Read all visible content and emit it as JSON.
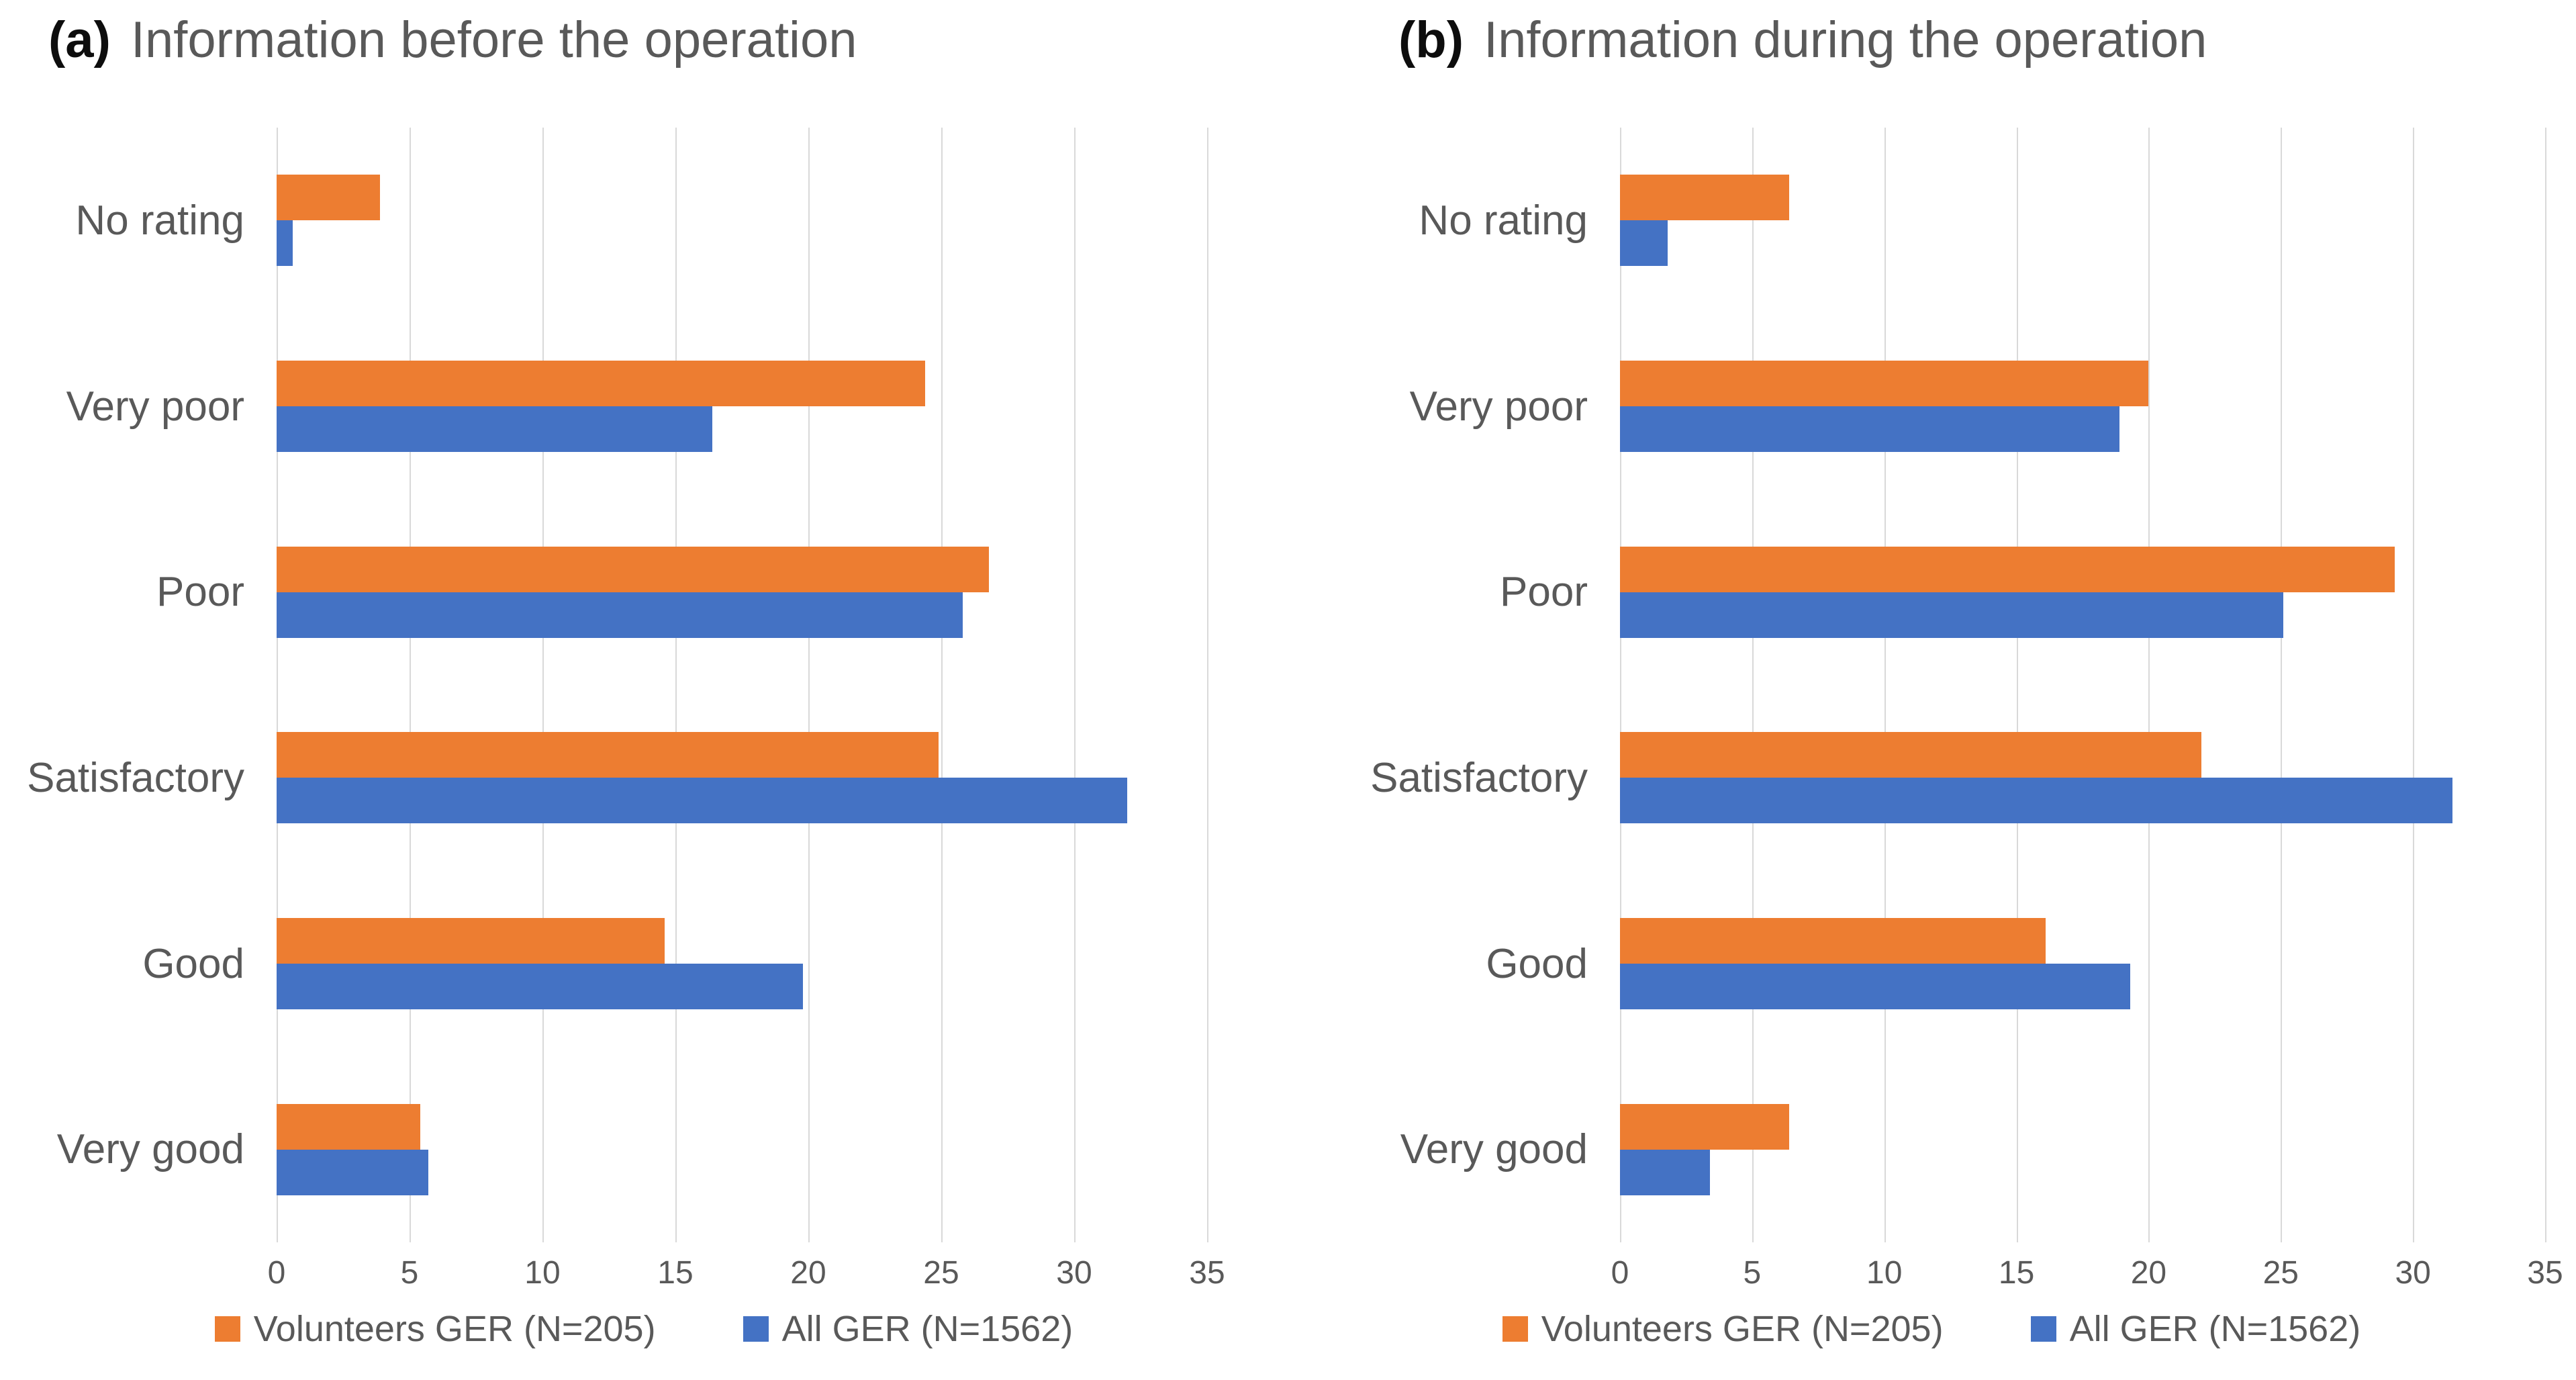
{
  "page": {
    "background": "#FFFFFF",
    "text_color": "#595959",
    "gridline_color": "#D9D9D9"
  },
  "chart_data": [
    {
      "type": "bar",
      "orientation": "horizontal",
      "panel_label": "(a)",
      "title": "Information before the operation",
      "categories": [
        "No rating",
        "Very poor",
        "Poor",
        "Satisfactory",
        "Good",
        "Very good"
      ],
      "series": [
        {
          "name": "Volunteers GER (N=205)",
          "color": "#ED7D31",
          "values": [
            3.9,
            24.4,
            26.8,
            24.9,
            14.6,
            5.4
          ]
        },
        {
          "name": "All GER (N=1562)",
          "color": "#4472C4",
          "values": [
            0.6,
            16.4,
            25.8,
            32.0,
            19.8,
            5.7
          ]
        }
      ],
      "xticks": [
        0,
        5,
        10,
        15,
        20,
        25,
        30,
        35
      ],
      "xlim": [
        0,
        35
      ],
      "grid": true,
      "legend_position": "bottom"
    },
    {
      "type": "bar",
      "orientation": "horizontal",
      "panel_label": "(b)",
      "title": "Information during the operation",
      "categories": [
        "No rating",
        "Very poor",
        "Poor",
        "Satisfactory",
        "Good",
        "Very good"
      ],
      "series": [
        {
          "name": "Volunteers GER (N=205)",
          "color": "#ED7D31",
          "values": [
            6.4,
            20.0,
            29.3,
            22.0,
            16.1,
            6.4
          ]
        },
        {
          "name": "All GER (N=1562)",
          "color": "#4472C4",
          "values": [
            1.8,
            18.9,
            25.1,
            31.5,
            19.3,
            3.4
          ]
        }
      ],
      "xticks": [
        0,
        5,
        10,
        15,
        20,
        25,
        30,
        35
      ],
      "xlim": [
        0,
        35
      ],
      "grid": true,
      "legend_position": "bottom"
    }
  ]
}
